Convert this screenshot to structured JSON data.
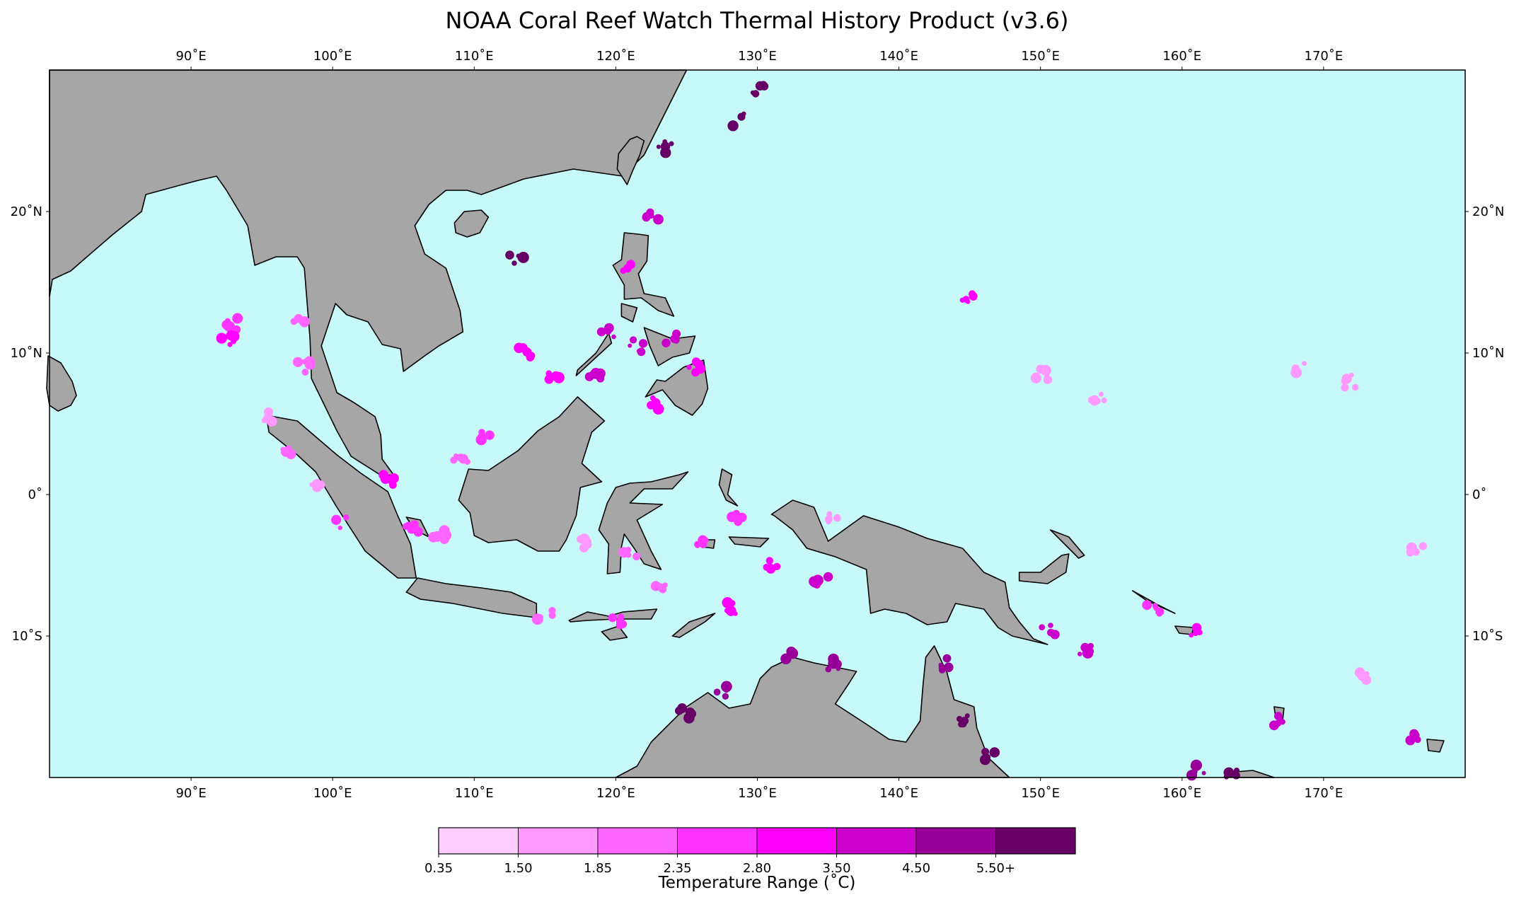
{
  "title": "NOAA Coral Reef Watch Thermal History Product (v3.6)",
  "map": {
    "lon_range": [
      80,
      180
    ],
    "lat_range": [
      -20,
      30
    ],
    "colors": {
      "ocean": "#c7f9f8",
      "land": "#a6a6a6",
      "coast": "#000000"
    },
    "lon_ticks": [
      {
        "value": 90,
        "label": "90˚E"
      },
      {
        "value": 100,
        "label": "100˚E"
      },
      {
        "value": 110,
        "label": "110˚E"
      },
      {
        "value": 120,
        "label": "120˚E"
      },
      {
        "value": 130,
        "label": "130˚E"
      },
      {
        "value": 140,
        "label": "140˚E"
      },
      {
        "value": 150,
        "label": "150˚E"
      },
      {
        "value": 160,
        "label": "160˚E"
      },
      {
        "value": 170,
        "label": "170˚E"
      }
    ],
    "lat_ticks": [
      {
        "value": 20,
        "label": "20˚N"
      },
      {
        "value": 10,
        "label": "10˚N"
      },
      {
        "value": 0,
        "label": "0˚"
      },
      {
        "value": -10,
        "label": "10˚S"
      }
    ]
  },
  "colorbar": {
    "label": "Temperature Range (˚C)",
    "tick_labels": [
      "0.35",
      "1.50",
      "1.85",
      "2.35",
      "2.80",
      "3.50",
      "4.50",
      "5.50+"
    ],
    "colors": [
      "#ffccff",
      "#ff99ff",
      "#ff66ff",
      "#ff33ff",
      "#ff00ff",
      "#cc00cc",
      "#990099",
      "#660066"
    ]
  },
  "reef_patches": [
    {
      "lon": 93,
      "lat": 12,
      "level": 3
    },
    {
      "lon": 92.6,
      "lat": 11,
      "level": 4
    },
    {
      "lon": 97.5,
      "lat": 12,
      "level": 2
    },
    {
      "lon": 98,
      "lat": 9,
      "level": 2
    },
    {
      "lon": 95.5,
      "lat": 5.5,
      "level": 1
    },
    {
      "lon": 97,
      "lat": 3,
      "level": 2
    },
    {
      "lon": 99,
      "lat": 0.5,
      "level": 1
    },
    {
      "lon": 100.5,
      "lat": -2,
      "level": 3
    },
    {
      "lon": 104,
      "lat": 1,
      "level": 4
    },
    {
      "lon": 105.5,
      "lat": -2.3,
      "level": 3
    },
    {
      "lon": 107.5,
      "lat": -3,
      "level": 2
    },
    {
      "lon": 109,
      "lat": 2.5,
      "level": 2
    },
    {
      "lon": 111,
      "lat": 4,
      "level": 3
    },
    {
      "lon": 113.5,
      "lat": 10,
      "level": 4
    },
    {
      "lon": 115.5,
      "lat": 8.5,
      "level": 4
    },
    {
      "lon": 118.5,
      "lat": 8.5,
      "level": 5
    },
    {
      "lon": 119.5,
      "lat": 11.5,
      "level": 5
    },
    {
      "lon": 121.5,
      "lat": 10.5,
      "level": 5
    },
    {
      "lon": 124,
      "lat": 11,
      "level": 5
    },
    {
      "lon": 125.5,
      "lat": 9,
      "level": 4
    },
    {
      "lon": 122.5,
      "lat": 6.5,
      "level": 4
    },
    {
      "lon": 121,
      "lat": 16,
      "level": 4
    },
    {
      "lon": 122.5,
      "lat": 19.5,
      "level": 5
    },
    {
      "lon": 118,
      "lat": -3.5,
      "level": 1
    },
    {
      "lon": 121,
      "lat": -4,
      "level": 2
    },
    {
      "lon": 123,
      "lat": -6.5,
      "level": 2
    },
    {
      "lon": 126,
      "lat": -3.5,
      "level": 3
    },
    {
      "lon": 128.5,
      "lat": -1.5,
      "level": 3
    },
    {
      "lon": 131,
      "lat": -5,
      "level": 4
    },
    {
      "lon": 134.5,
      "lat": -6,
      "level": 5
    },
    {
      "lon": 135.5,
      "lat": -1.5,
      "level": 1
    },
    {
      "lon": 115,
      "lat": -8.5,
      "level": 2
    },
    {
      "lon": 120,
      "lat": -8.8,
      "level": 3
    },
    {
      "lon": 128,
      "lat": -8,
      "level": 4
    },
    {
      "lon": 143,
      "lat": -12,
      "level": 6
    },
    {
      "lon": 144.5,
      "lat": -16,
      "level": 7
    },
    {
      "lon": 146.5,
      "lat": -18.5,
      "level": 7
    },
    {
      "lon": 150.5,
      "lat": -9.5,
      "level": 5
    },
    {
      "lon": 153,
      "lat": -11,
      "level": 5
    },
    {
      "lon": 158,
      "lat": -8,
      "level": 3
    },
    {
      "lon": 161,
      "lat": -9.5,
      "level": 4
    },
    {
      "lon": 167,
      "lat": -16,
      "level": 5
    },
    {
      "lon": 176.5,
      "lat": -17,
      "level": 5
    },
    {
      "lon": 161,
      "lat": -19.5,
      "level": 6
    },
    {
      "lon": 163.5,
      "lat": -19.5,
      "level": 7
    },
    {
      "lon": 145,
      "lat": 14,
      "level": 4
    },
    {
      "lon": 150,
      "lat": 8.5,
      "level": 1
    },
    {
      "lon": 154,
      "lat": 7,
      "level": 1
    },
    {
      "lon": 168.5,
      "lat": 9,
      "level": 1
    },
    {
      "lon": 172,
      "lat": 8,
      "level": 1
    },
    {
      "lon": 128.5,
      "lat": 26.5,
      "level": 7
    },
    {
      "lon": 130,
      "lat": 28.5,
      "level": 7
    },
    {
      "lon": 123.5,
      "lat": 24.5,
      "level": 7
    },
    {
      "lon": 113,
      "lat": 16.5,
      "level": 7
    },
    {
      "lon": 127.5,
      "lat": -14,
      "level": 6
    },
    {
      "lon": 125,
      "lat": -15.5,
      "level": 7
    },
    {
      "lon": 132,
      "lat": -11.5,
      "level": 6
    },
    {
      "lon": 135.5,
      "lat": -12,
      "level": 6
    },
    {
      "lon": 176.5,
      "lat": -4,
      "level": 1
    },
    {
      "lon": 173,
      "lat": -13,
      "level": 1
    }
  ]
}
